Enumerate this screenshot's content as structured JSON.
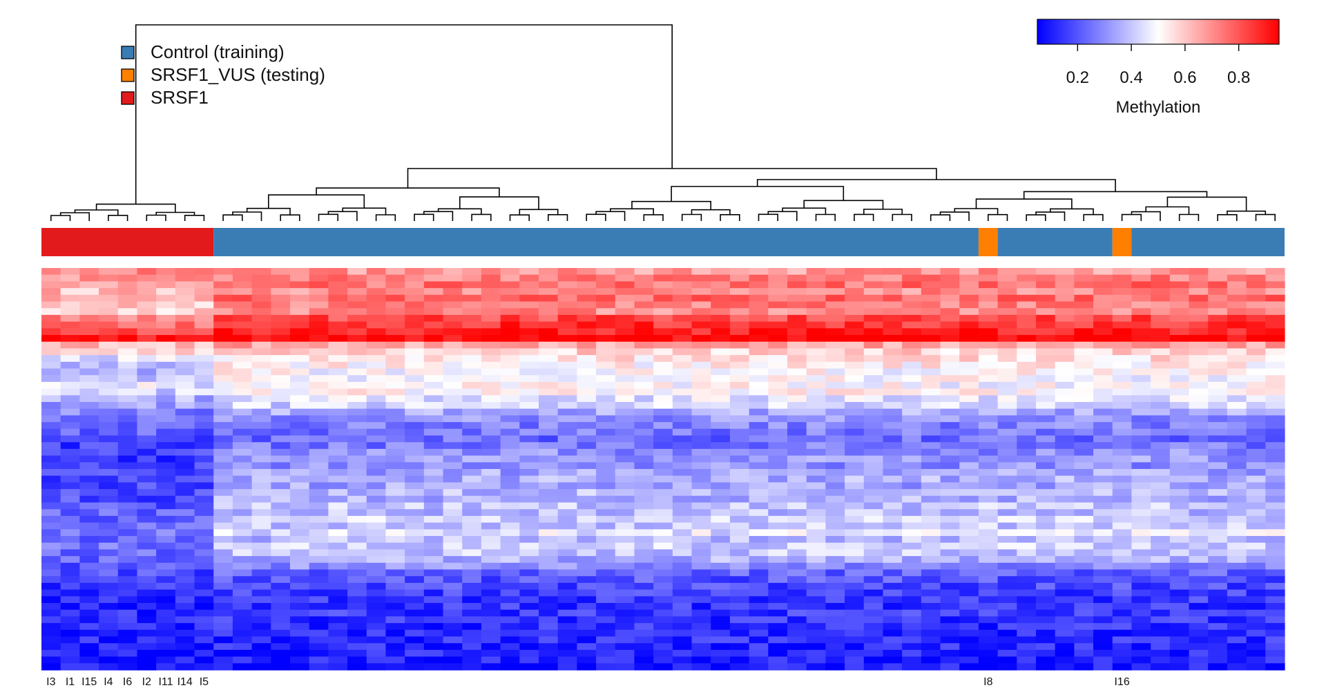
{
  "chart_data": {
    "type": "heatmap",
    "title": "",
    "colorbar": {
      "label": "Methylation",
      "ticks": [
        0.2,
        0.4,
        0.6,
        0.8
      ],
      "range": [
        0.05,
        0.95
      ],
      "low_color": "#0000ff",
      "mid_color": "#ffffff",
      "high_color": "#ff0000",
      "placement": "top-right"
    },
    "legend": {
      "placement": "top-left",
      "entries": [
        {
          "label": "Control (training)",
          "color": "#3a7db5"
        },
        {
          "label": "SRSF1_VUS (testing)",
          "color": "#ff8000"
        },
        {
          "label": "SRSF1",
          "color": "#e31a1c"
        }
      ]
    },
    "columns": {
      "count": 65,
      "group_annotation": [
        {
          "group": "SRSF1",
          "start": 0,
          "end": 8
        },
        {
          "group": "Control (training)",
          "start": 9,
          "end": 48
        },
        {
          "group": "SRSF1_VUS (testing)",
          "start": 49,
          "end": 49
        },
        {
          "group": "Control (training)",
          "start": 50,
          "end": 55
        },
        {
          "group": "SRSF1_VUS (testing)",
          "start": 56,
          "end": 56
        },
        {
          "group": "Control (training)",
          "start": 57,
          "end": 64
        }
      ],
      "labels": [
        {
          "index": 0,
          "text": "I3"
        },
        {
          "index": 1,
          "text": "I1"
        },
        {
          "index": 2,
          "text": "I15"
        },
        {
          "index": 3,
          "text": "I4"
        },
        {
          "index": 4,
          "text": "I6"
        },
        {
          "index": 5,
          "text": "I2"
        },
        {
          "index": 6,
          "text": "I11"
        },
        {
          "index": 7,
          "text": "I14"
        },
        {
          "index": 8,
          "text": "I5"
        },
        {
          "index": 49,
          "text": "I8"
        },
        {
          "index": 56,
          "text": "I16"
        }
      ]
    },
    "rows": {
      "count": 60,
      "profile_srsf1": [
        0.7,
        0.68,
        0.65,
        0.62,
        0.66,
        0.6,
        0.58,
        0.72,
        0.76,
        0.8,
        0.92,
        0.62,
        0.55,
        0.45,
        0.4,
        0.38,
        0.4,
        0.46,
        0.42,
        0.36,
        0.32,
        0.28,
        0.26,
        0.24,
        0.22,
        0.18,
        0.16,
        0.16,
        0.15,
        0.17,
        0.18,
        0.16,
        0.18,
        0.2,
        0.18,
        0.2,
        0.22,
        0.24,
        0.22,
        0.25,
        0.23,
        0.26,
        0.24,
        0.22,
        0.2,
        0.18,
        0.16,
        0.14,
        0.12,
        0.12,
        0.1,
        0.12,
        0.14,
        0.12,
        0.1,
        0.11,
        0.1,
        0.09,
        0.08,
        0.08
      ],
      "profile_control": [
        0.68,
        0.72,
        0.75,
        0.7,
        0.76,
        0.72,
        0.7,
        0.82,
        0.86,
        0.9,
        0.95,
        0.66,
        0.58,
        0.55,
        0.52,
        0.5,
        0.5,
        0.5,
        0.52,
        0.45,
        0.42,
        0.35,
        0.3,
        0.28,
        0.26,
        0.24,
        0.26,
        0.3,
        0.32,
        0.3,
        0.34,
        0.36,
        0.34,
        0.38,
        0.36,
        0.4,
        0.38,
        0.42,
        0.4,
        0.45,
        0.38,
        0.42,
        0.4,
        0.36,
        0.3,
        0.22,
        0.2,
        0.18,
        0.16,
        0.15,
        0.14,
        0.15,
        0.14,
        0.13,
        0.12,
        0.13,
        0.12,
        0.11,
        0.1,
        0.09
      ]
    }
  }
}
